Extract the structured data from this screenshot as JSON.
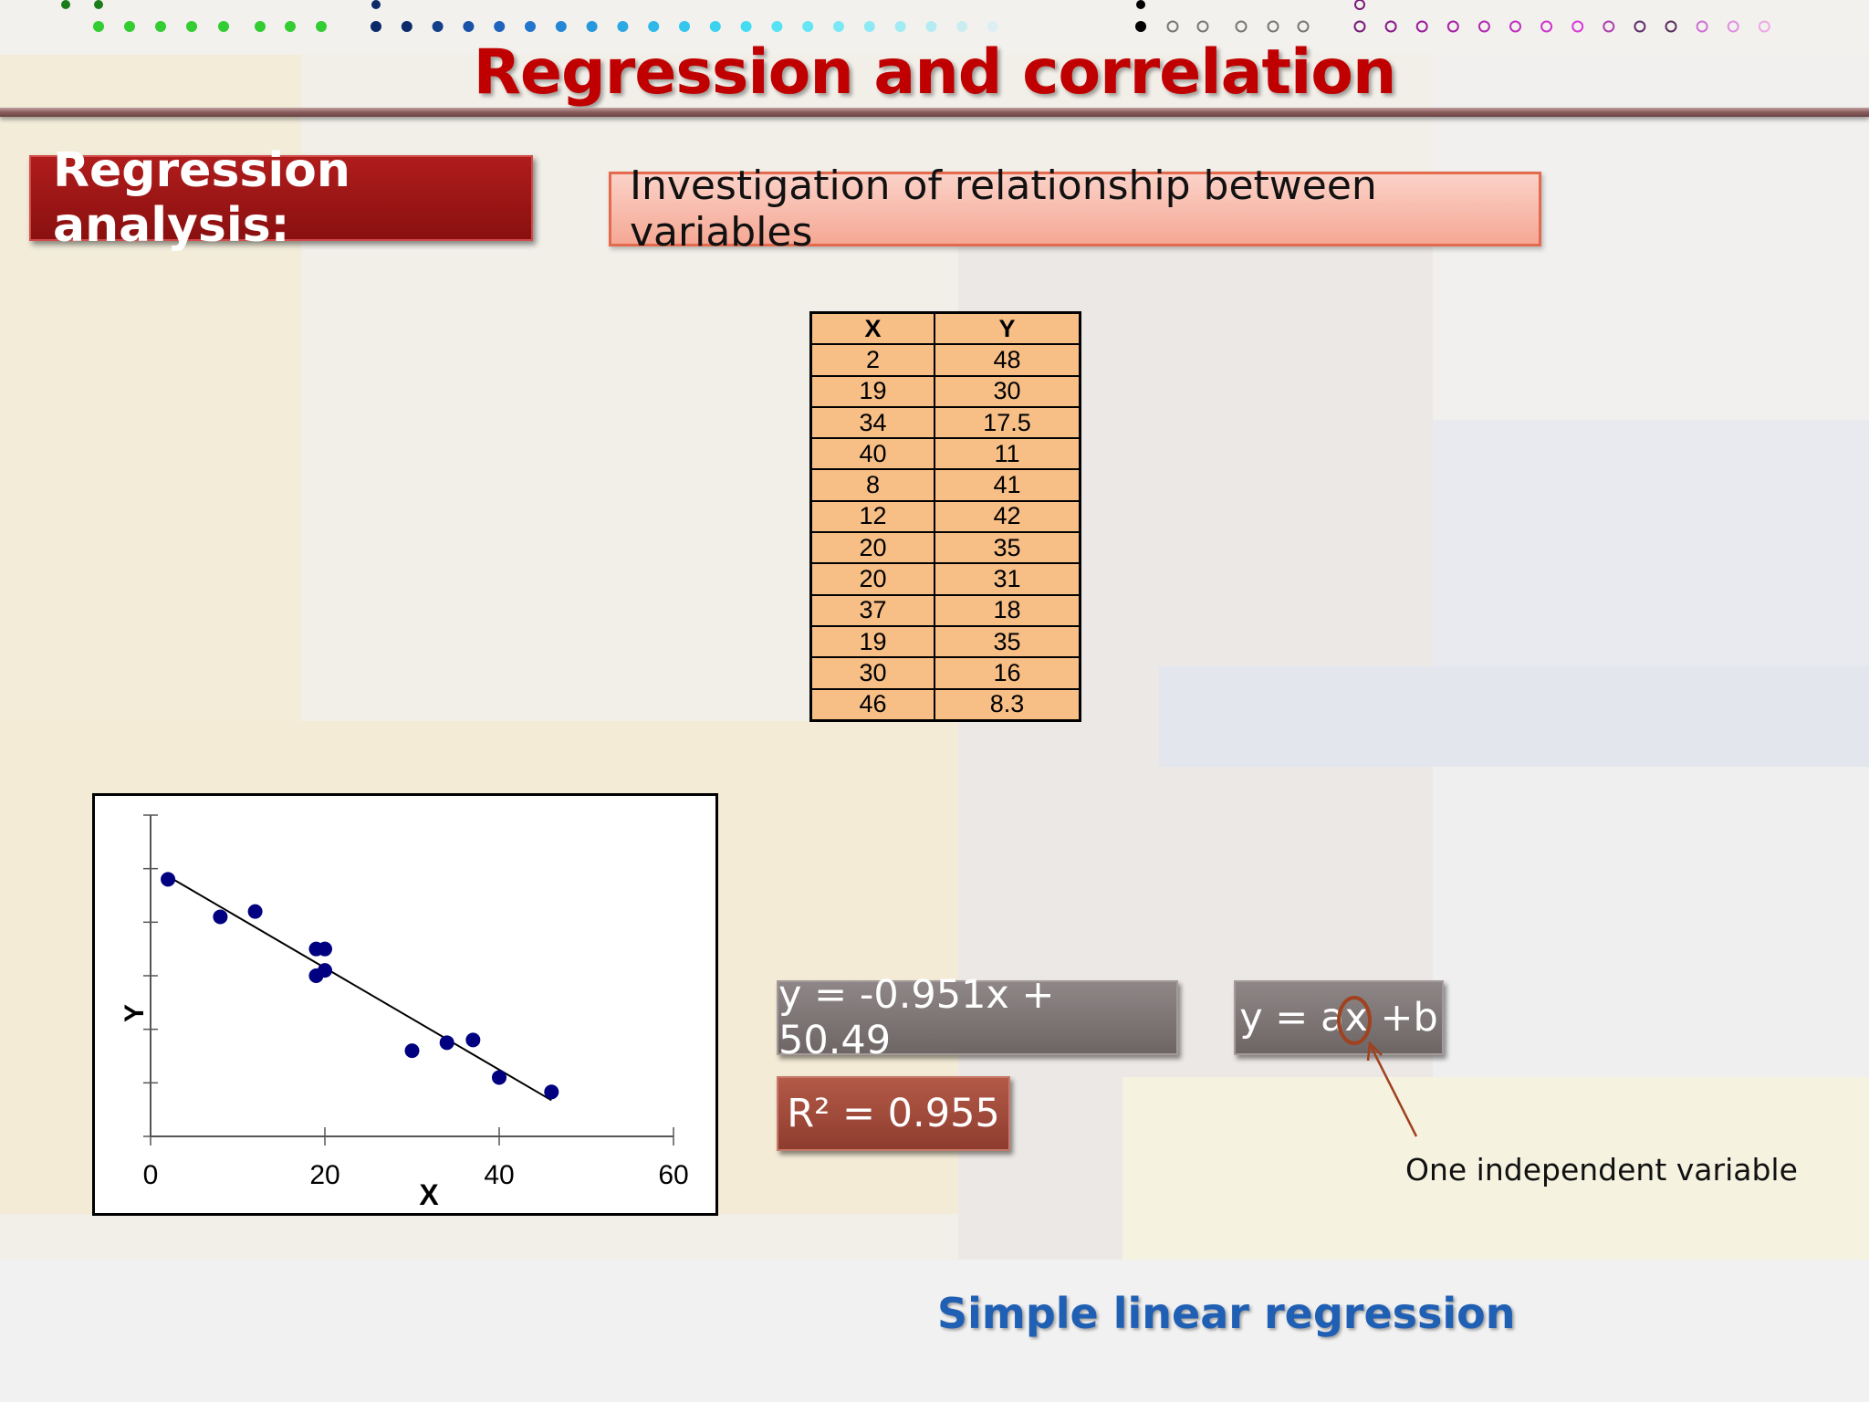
{
  "slide": {
    "title": "Regression and correlation",
    "section_label": "Regression analysis:",
    "subtitle": "Investigation of relationship between variables",
    "equation_fitted": "y = -0.951x + 50.49",
    "r_squared": "R² = 0.955",
    "equation_general": "y = ax +b",
    "annotation": "One independent variable",
    "footer": "Simple linear regression"
  },
  "table": {
    "headers": [
      "X",
      "Y"
    ],
    "rows": [
      [
        "2",
        "48"
      ],
      [
        "19",
        "30"
      ],
      [
        "34",
        "17.5"
      ],
      [
        "40",
        "11"
      ],
      [
        "8",
        "41"
      ],
      [
        "12",
        "42"
      ],
      [
        "20",
        "35"
      ],
      [
        "20",
        "31"
      ],
      [
        "37",
        "18"
      ],
      [
        "19",
        "35"
      ],
      [
        "30",
        "16"
      ],
      [
        "46",
        "8.3"
      ]
    ]
  },
  "colors": {
    "title": "#c00000",
    "points": "#000080",
    "footer": "#1f5fb4",
    "table_fill": "#f7be86"
  },
  "chart_data": {
    "type": "scatter",
    "xlabel": "X",
    "ylabel": "Y",
    "xlim": [
      0,
      60
    ],
    "ylim": [
      0,
      60
    ],
    "x_ticks": [
      "0",
      "20",
      "40",
      "60"
    ],
    "points": [
      {
        "x": 2,
        "y": 48
      },
      {
        "x": 19,
        "y": 30
      },
      {
        "x": 34,
        "y": 17.5
      },
      {
        "x": 40,
        "y": 11
      },
      {
        "x": 8,
        "y": 41
      },
      {
        "x": 12,
        "y": 42
      },
      {
        "x": 20,
        "y": 35
      },
      {
        "x": 20,
        "y": 31
      },
      {
        "x": 37,
        "y": 18
      },
      {
        "x": 19,
        "y": 35
      },
      {
        "x": 30,
        "y": 16
      },
      {
        "x": 46,
        "y": 8.3
      }
    ],
    "trendline": {
      "slope": -0.951,
      "intercept": 50.49,
      "x_start": 2,
      "x_end": 46
    }
  }
}
